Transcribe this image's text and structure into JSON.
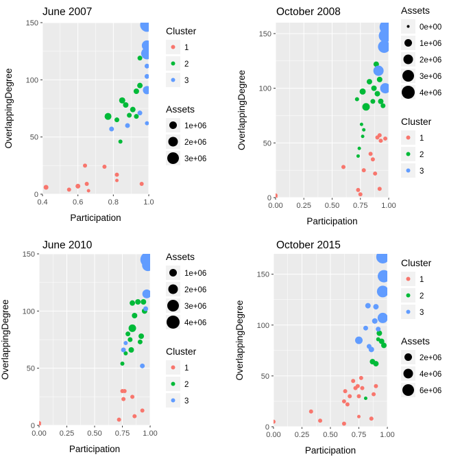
{
  "chart_data": [
    {
      "type": "scatter",
      "title": "June 2007",
      "xlabel": "Participation",
      "ylabel": "OverlappingDegree",
      "xlim": [
        0.4,
        1.0
      ],
      "ylim": [
        0,
        150
      ],
      "xticks": [
        0.4,
        0.6,
        0.8,
        1.0
      ],
      "xtick_labels": [
        "0.4",
        "0.6",
        "0.8",
        "1.0"
      ],
      "yticks": [
        0,
        50,
        100,
        150
      ],
      "ytick_labels": [
        "0",
        "50",
        "100",
        "150"
      ],
      "legends": [
        {
          "title": "Cluster",
          "kind": "color",
          "entries": [
            {
              "label": "1",
              "color": "#F8766D"
            },
            {
              "label": "2",
              "color": "#00BA38"
            },
            {
              "label": "3",
              "color": "#619CFF"
            }
          ]
        },
        {
          "title": "Assets",
          "kind": "size",
          "entries": [
            {
              "label": "1e+06",
              "value": 1000000
            },
            {
              "label": "2e+06",
              "value": 2000000
            },
            {
              "label": "3e+06",
              "value": 3000000
            }
          ]
        }
      ],
      "points": [
        {
          "x": 0.42,
          "y": 6,
          "cluster": 1,
          "r": 3.5
        },
        {
          "x": 0.55,
          "y": 4,
          "cluster": 1,
          "r": 3
        },
        {
          "x": 0.6,
          "y": 7,
          "cluster": 1,
          "r": 3.5
        },
        {
          "x": 0.65,
          "y": 9,
          "cluster": 1,
          "r": 3
        },
        {
          "x": 0.66,
          "y": 3,
          "cluster": 1,
          "r": 2.5
        },
        {
          "x": 0.64,
          "y": 25,
          "cluster": 1,
          "r": 3
        },
        {
          "x": 0.75,
          "y": 24,
          "cluster": 1,
          "r": 3
        },
        {
          "x": 0.82,
          "y": 17,
          "cluster": 1,
          "r": 3
        },
        {
          "x": 0.82,
          "y": 12,
          "cluster": 1,
          "r": 2.5
        },
        {
          "x": 0.96,
          "y": 9,
          "cluster": 1,
          "r": 3
        },
        {
          "x": 0.84,
          "y": 46,
          "cluster": 2,
          "r": 3
        },
        {
          "x": 0.82,
          "y": 65,
          "cluster": 2,
          "r": 3.5
        },
        {
          "x": 0.77,
          "y": 68,
          "cluster": 2,
          "r": 5
        },
        {
          "x": 0.85,
          "y": 82,
          "cluster": 2,
          "r": 4.5
        },
        {
          "x": 0.87,
          "y": 78,
          "cluster": 2,
          "r": 4
        },
        {
          "x": 0.89,
          "y": 69,
          "cluster": 2,
          "r": 3.5
        },
        {
          "x": 0.91,
          "y": 74,
          "cluster": 2,
          "r": 4
        },
        {
          "x": 0.93,
          "y": 68,
          "cluster": 2,
          "r": 3.5
        },
        {
          "x": 0.93,
          "y": 90,
          "cluster": 2,
          "r": 4
        },
        {
          "x": 0.95,
          "y": 95,
          "cluster": 2,
          "r": 4
        },
        {
          "x": 0.95,
          "y": 119,
          "cluster": 2,
          "r": 3.5
        },
        {
          "x": 0.79,
          "y": 57,
          "cluster": 3,
          "r": 3.5
        },
        {
          "x": 0.88,
          "y": 60,
          "cluster": 3,
          "r": 3.5
        },
        {
          "x": 0.95,
          "y": 71,
          "cluster": 3,
          "r": 3.5
        },
        {
          "x": 0.99,
          "y": 62,
          "cluster": 3,
          "r": 3
        },
        {
          "x": 0.99,
          "y": 91,
          "cluster": 3,
          "r": 6
        },
        {
          "x": 0.99,
          "y": 103,
          "cluster": 3,
          "r": 3.5
        },
        {
          "x": 0.99,
          "y": 112,
          "cluster": 3,
          "r": 3.5
        },
        {
          "x": 0.99,
          "y": 123,
          "cluster": 3,
          "r": 8.5
        },
        {
          "x": 0.99,
          "y": 130,
          "cluster": 3,
          "r": 7.5
        },
        {
          "x": 0.99,
          "y": 148,
          "cluster": 3,
          "r": 10
        }
      ]
    },
    {
      "type": "scatter",
      "title": "October 2008",
      "xlabel": "Participation",
      "ylabel": "OverlappingDegree",
      "xlim": [
        0.0,
        1.0
      ],
      "ylim": [
        0,
        160
      ],
      "xticks": [
        0.0,
        0.25,
        0.5,
        0.75,
        1.0
      ],
      "xtick_labels": [
        "0.00",
        "0.25",
        "0.50",
        "0.75",
        "1.00"
      ],
      "yticks": [
        0,
        50,
        100,
        150
      ],
      "ytick_labels": [
        "0",
        "50",
        "100",
        "150"
      ],
      "legends": [
        {
          "title": "Assets",
          "kind": "size",
          "entries": [
            {
              "label": "0e+00",
              "value": 0
            },
            {
              "label": "1e+06",
              "value": 1000000
            },
            {
              "label": "2e+06",
              "value": 2000000
            },
            {
              "label": "3e+06",
              "value": 3000000
            },
            {
              "label": "4e+06",
              "value": 4000000
            }
          ]
        },
        {
          "title": "Cluster",
          "kind": "color",
          "entries": [
            {
              "label": "1",
              "color": "#F8766D"
            },
            {
              "label": "2",
              "color": "#00BA38"
            },
            {
              "label": "3",
              "color": "#619CFF"
            }
          ]
        }
      ],
      "points": [
        {
          "x": 0.0,
          "y": 0,
          "cluster": 1,
          "r": 3
        },
        {
          "x": 0.0,
          "y": 2,
          "cluster": 1,
          "r": 3
        },
        {
          "x": 0.6,
          "y": 28,
          "cluster": 1,
          "r": 3
        },
        {
          "x": 0.73,
          "y": 7,
          "cluster": 1,
          "r": 3
        },
        {
          "x": 0.75,
          "y": 3,
          "cluster": 1,
          "r": 3
        },
        {
          "x": 0.78,
          "y": 25,
          "cluster": 1,
          "r": 3
        },
        {
          "x": 0.84,
          "y": 40,
          "cluster": 1,
          "r": 3
        },
        {
          "x": 0.86,
          "y": 35,
          "cluster": 1,
          "r": 3
        },
        {
          "x": 0.88,
          "y": 22,
          "cluster": 1,
          "r": 3
        },
        {
          "x": 0.9,
          "y": 55,
          "cluster": 1,
          "r": 3
        },
        {
          "x": 0.92,
          "y": 57,
          "cluster": 1,
          "r": 3
        },
        {
          "x": 0.93,
          "y": 52,
          "cluster": 1,
          "r": 3
        },
        {
          "x": 0.97,
          "y": 54,
          "cluster": 1,
          "r": 3
        },
        {
          "x": 0.92,
          "y": 8,
          "cluster": 1,
          "r": 3
        },
        {
          "x": 0.73,
          "y": 38,
          "cluster": 2,
          "r": 2.5
        },
        {
          "x": 0.74,
          "y": 45,
          "cluster": 2,
          "r": 2.5
        },
        {
          "x": 0.77,
          "y": 56,
          "cluster": 2,
          "r": 2.5
        },
        {
          "x": 0.76,
          "y": 67,
          "cluster": 2,
          "r": 2.5
        },
        {
          "x": 0.78,
          "y": 62,
          "cluster": 2,
          "r": 2.5
        },
        {
          "x": 0.72,
          "y": 90,
          "cluster": 2,
          "r": 3
        },
        {
          "x": 0.77,
          "y": 97,
          "cluster": 2,
          "r": 4.5
        },
        {
          "x": 0.8,
          "y": 83,
          "cluster": 2,
          "r": 5.5
        },
        {
          "x": 0.83,
          "y": 106,
          "cluster": 2,
          "r": 4
        },
        {
          "x": 0.86,
          "y": 88,
          "cluster": 2,
          "r": 3.5
        },
        {
          "x": 0.87,
          "y": 100,
          "cluster": 2,
          "r": 4
        },
        {
          "x": 0.89,
          "y": 122,
          "cluster": 2,
          "r": 4
        },
        {
          "x": 0.9,
          "y": 95,
          "cluster": 2,
          "r": 4
        },
        {
          "x": 0.92,
          "y": 108,
          "cluster": 2,
          "r": 4
        },
        {
          "x": 0.93,
          "y": 88,
          "cluster": 2,
          "r": 4
        },
        {
          "x": 0.95,
          "y": 84,
          "cluster": 2,
          "r": 3.5
        },
        {
          "x": 0.91,
          "y": 116,
          "cluster": 3,
          "r": 7.5
        },
        {
          "x": 0.97,
          "y": 100,
          "cluster": 3,
          "r": 7.5
        },
        {
          "x": 0.96,
          "y": 138,
          "cluster": 3,
          "r": 9
        },
        {
          "x": 0.97,
          "y": 148,
          "cluster": 3,
          "r": 9.5
        },
        {
          "x": 0.98,
          "y": 156,
          "cluster": 3,
          "r": 10
        }
      ]
    },
    {
      "type": "scatter",
      "title": "June 2010",
      "xlabel": "Participation",
      "ylabel": "OverlappingDegree",
      "xlim": [
        0.0,
        1.0
      ],
      "ylim": [
        0,
        150
      ],
      "xticks": [
        0.0,
        0.25,
        0.5,
        0.75,
        1.0
      ],
      "xtick_labels": [
        "0.00",
        "0.25",
        "0.50",
        "0.75",
        "1.00"
      ],
      "yticks": [
        0,
        50,
        100,
        150
      ],
      "ytick_labels": [
        "0",
        "50",
        "100",
        "150"
      ],
      "legends": [
        {
          "title": "Assets",
          "kind": "size",
          "entries": [
            {
              "label": "1e+06",
              "value": 1000000
            },
            {
              "label": "2e+06",
              "value": 2000000
            },
            {
              "label": "3e+06",
              "value": 3000000
            },
            {
              "label": "4e+06",
              "value": 4000000
            }
          ]
        },
        {
          "title": "Cluster",
          "kind": "color",
          "entries": [
            {
              "label": "1",
              "color": "#F8766D"
            },
            {
              "label": "2",
              "color": "#00BA38"
            },
            {
              "label": "3",
              "color": "#619CFF"
            }
          ]
        }
      ],
      "points": [
        {
          "x": 0.0,
          "y": 0,
          "cluster": 1,
          "r": 3
        },
        {
          "x": 0.0,
          "y": 2,
          "cluster": 1,
          "r": 3
        },
        {
          "x": 0.72,
          "y": 5,
          "cluster": 1,
          "r": 3
        },
        {
          "x": 0.75,
          "y": 30,
          "cluster": 1,
          "r": 3
        },
        {
          "x": 0.77,
          "y": 30,
          "cluster": 1,
          "r": 3
        },
        {
          "x": 0.76,
          "y": 23,
          "cluster": 1,
          "r": 3
        },
        {
          "x": 0.84,
          "y": 25,
          "cluster": 1,
          "r": 3
        },
        {
          "x": 0.86,
          "y": 8,
          "cluster": 1,
          "r": 3
        },
        {
          "x": 0.93,
          "y": 13,
          "cluster": 1,
          "r": 3
        },
        {
          "x": 0.75,
          "y": 54,
          "cluster": 2,
          "r": 3
        },
        {
          "x": 0.78,
          "y": 63,
          "cluster": 2,
          "r": 3
        },
        {
          "x": 0.8,
          "y": 80,
          "cluster": 2,
          "r": 3.5
        },
        {
          "x": 0.82,
          "y": 75,
          "cluster": 2,
          "r": 3.5
        },
        {
          "x": 0.83,
          "y": 66,
          "cluster": 2,
          "r": 4
        },
        {
          "x": 0.84,
          "y": 85,
          "cluster": 2,
          "r": 5.5
        },
        {
          "x": 0.84,
          "y": 107,
          "cluster": 2,
          "r": 4
        },
        {
          "x": 0.86,
          "y": 96,
          "cluster": 2,
          "r": 4
        },
        {
          "x": 0.89,
          "y": 108,
          "cluster": 2,
          "r": 4
        },
        {
          "x": 0.91,
          "y": 73,
          "cluster": 2,
          "r": 3.5
        },
        {
          "x": 0.92,
          "y": 78,
          "cluster": 2,
          "r": 4
        },
        {
          "x": 0.95,
          "y": 100,
          "cluster": 2,
          "r": 4
        },
        {
          "x": 0.94,
          "y": 108,
          "cluster": 2,
          "r": 4
        },
        {
          "x": 0.76,
          "y": 66,
          "cluster": 3,
          "r": 3.5
        },
        {
          "x": 0.78,
          "y": 72,
          "cluster": 3,
          "r": 3
        },
        {
          "x": 0.93,
          "y": 52,
          "cluster": 3,
          "r": 3.5
        },
        {
          "x": 0.96,
          "y": 102,
          "cluster": 3,
          "r": 3.5
        },
        {
          "x": 0.97,
          "y": 115,
          "cluster": 3,
          "r": 6.5
        },
        {
          "x": 0.98,
          "y": 140,
          "cluster": 3,
          "r": 8.5
        },
        {
          "x": 0.98,
          "y": 145,
          "cluster": 3,
          "r": 11
        }
      ]
    },
    {
      "type": "scatter",
      "title": "October 2015",
      "xlabel": "Participation",
      "ylabel": "OverlappingDegree",
      "xlim": [
        0.0,
        1.0
      ],
      "ylim": [
        0,
        170
      ],
      "xticks": [
        0.0,
        0.25,
        0.5,
        0.75,
        1.0
      ],
      "xtick_labels": [
        "0.00",
        "0.25",
        "0.50",
        "0.75",
        "1.00"
      ],
      "yticks": [
        0,
        50,
        100,
        150
      ],
      "ytick_labels": [
        "0",
        "50",
        "100",
        "150"
      ],
      "legends": [
        {
          "title": "Cluster",
          "kind": "color",
          "entries": [
            {
              "label": "1",
              "color": "#F8766D"
            },
            {
              "label": "2",
              "color": "#00BA38"
            },
            {
              "label": "3",
              "color": "#619CFF"
            }
          ]
        },
        {
          "title": "Assets",
          "kind": "size",
          "entries": [
            {
              "label": "2e+06",
              "value": 2000000
            },
            {
              "label": "4e+06",
              "value": 4000000
            },
            {
              "label": "6e+06",
              "value": 6000000
            }
          ]
        }
      ],
      "points": [
        {
          "x": 0.0,
          "y": 5,
          "cluster": 1,
          "r": 3
        },
        {
          "x": 0.33,
          "y": 15,
          "cluster": 1,
          "r": 3
        },
        {
          "x": 0.41,
          "y": 6,
          "cluster": 1,
          "r": 3
        },
        {
          "x": 0.62,
          "y": 3,
          "cluster": 1,
          "r": 3
        },
        {
          "x": 0.62,
          "y": 25,
          "cluster": 1,
          "r": 3
        },
        {
          "x": 0.63,
          "y": 35,
          "cluster": 1,
          "r": 3
        },
        {
          "x": 0.65,
          "y": 22,
          "cluster": 1,
          "r": 3
        },
        {
          "x": 0.67,
          "y": 30,
          "cluster": 1,
          "r": 3
        },
        {
          "x": 0.7,
          "y": 45,
          "cluster": 1,
          "r": 3
        },
        {
          "x": 0.72,
          "y": 38,
          "cluster": 1,
          "r": 3
        },
        {
          "x": 0.74,
          "y": 40,
          "cluster": 1,
          "r": 3
        },
        {
          "x": 0.75,
          "y": 30,
          "cluster": 1,
          "r": 3
        },
        {
          "x": 0.77,
          "y": 48,
          "cluster": 1,
          "r": 3
        },
        {
          "x": 0.78,
          "y": 38,
          "cluster": 1,
          "r": 3
        },
        {
          "x": 0.75,
          "y": 10,
          "cluster": 1,
          "r": 2.5
        },
        {
          "x": 0.86,
          "y": 8,
          "cluster": 1,
          "r": 3
        },
        {
          "x": 0.88,
          "y": 32,
          "cluster": 1,
          "r": 3
        },
        {
          "x": 0.9,
          "y": 40,
          "cluster": 1,
          "r": 3
        },
        {
          "x": 0.81,
          "y": 28,
          "cluster": 2,
          "r": 2.5
        },
        {
          "x": 0.87,
          "y": 64,
          "cluster": 2,
          "r": 4
        },
        {
          "x": 0.9,
          "y": 62,
          "cluster": 2,
          "r": 4
        },
        {
          "x": 0.92,
          "y": 86,
          "cluster": 2,
          "r": 3
        },
        {
          "x": 0.93,
          "y": 92,
          "cluster": 2,
          "r": 4
        },
        {
          "x": 0.95,
          "y": 84,
          "cluster": 2,
          "r": 4
        },
        {
          "x": 0.97,
          "y": 80,
          "cluster": 2,
          "r": 4
        },
        {
          "x": 0.75,
          "y": 85,
          "cluster": 3,
          "r": 5.5
        },
        {
          "x": 0.81,
          "y": 97,
          "cluster": 3,
          "r": 3.5
        },
        {
          "x": 0.84,
          "y": 79,
          "cluster": 3,
          "r": 3.5
        },
        {
          "x": 0.86,
          "y": 76,
          "cluster": 3,
          "r": 4
        },
        {
          "x": 0.83,
          "y": 119,
          "cluster": 3,
          "r": 4
        },
        {
          "x": 0.89,
          "y": 104,
          "cluster": 3,
          "r": 4
        },
        {
          "x": 0.9,
          "y": 118,
          "cluster": 3,
          "r": 4
        },
        {
          "x": 0.92,
          "y": 96,
          "cluster": 3,
          "r": 3.5
        },
        {
          "x": 0.96,
          "y": 107,
          "cluster": 3,
          "r": 7.5
        },
        {
          "x": 0.96,
          "y": 133,
          "cluster": 3,
          "r": 8.5
        },
        {
          "x": 0.97,
          "y": 148,
          "cluster": 3,
          "r": 9
        },
        {
          "x": 0.96,
          "y": 167,
          "cluster": 3,
          "r": 9.5
        }
      ]
    }
  ]
}
